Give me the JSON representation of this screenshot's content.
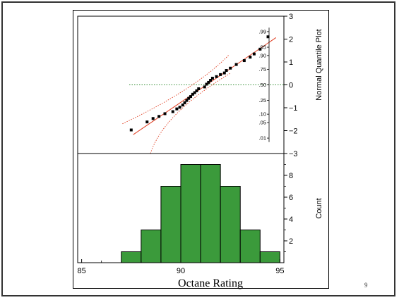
{
  "page_number": "9",
  "chart_data": [
    {
      "type": "scatter",
      "subtype": "normal-quantile-plot",
      "title": "",
      "xlabel": "Octane Rating",
      "ylabel": "Normal Quantile Plot",
      "xlim": [
        84.8,
        95.2
      ],
      "ylim": [
        -3,
        3
      ],
      "y_ticks": [
        -3,
        -2,
        -1,
        0,
        1,
        2,
        3
      ],
      "probability_ticks": [
        ".01",
        ".05",
        ".10",
        ".25",
        ".50",
        ".75",
        ".90",
        ".95",
        ".99"
      ],
      "x": [
        87.5,
        88.3,
        88.6,
        88.9,
        89.2,
        89.6,
        89.8,
        89.95,
        90.1,
        90.2,
        90.3,
        90.4,
        90.5,
        90.6,
        90.7,
        90.8,
        90.9,
        91.2,
        91.3,
        91.4,
        91.5,
        91.6,
        91.8,
        92.0,
        92.2,
        92.3,
        92.5,
        92.8,
        93.2,
        93.5,
        93.7,
        94.0,
        94.4
      ],
      "y": [
        -1.97,
        -1.62,
        -1.47,
        -1.38,
        -1.26,
        -1.17,
        -1.05,
        -0.98,
        -0.88,
        -0.78,
        -0.68,
        -0.59,
        -0.51,
        -0.41,
        -0.34,
        -0.26,
        -0.17,
        -0.09,
        0.03,
        0.11,
        0.2,
        0.29,
        0.36,
        0.45,
        0.52,
        0.63,
        0.73,
        0.89,
        1.06,
        1.21,
        1.35,
        1.56,
        2.1
      ],
      "series_color": "#000000",
      "fit_color": "#e03c1f",
      "reference_line_color": "#2e8b2e"
    },
    {
      "type": "bar",
      "subtype": "histogram",
      "xlabel": "Octane Rating",
      "ylabel": "Count",
      "xlim": [
        84.8,
        95.2
      ],
      "ylim": [
        0,
        10
      ],
      "x_ticks": [
        85,
        90,
        95
      ],
      "y_ticks": [
        2,
        4,
        6,
        8
      ],
      "bins": [
        {
          "start": 86,
          "end": 87,
          "count": 0
        },
        {
          "start": 87,
          "end": 88,
          "count": 1
        },
        {
          "start": 88,
          "end": 89,
          "count": 3
        },
        {
          "start": 89,
          "end": 90,
          "count": 7
        },
        {
          "start": 90,
          "end": 91,
          "count": 9
        },
        {
          "start": 91,
          "end": 92,
          "count": 9
        },
        {
          "start": 92,
          "end": 93,
          "count": 7
        },
        {
          "start": 93,
          "end": 94,
          "count": 3
        },
        {
          "start": 94,
          "end": 95,
          "count": 1
        }
      ],
      "bar_color": "#3b9a3b"
    }
  ]
}
